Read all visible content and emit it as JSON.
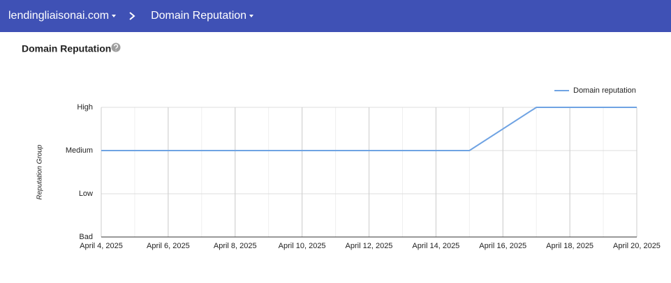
{
  "header": {
    "domain": "lendingliaisonai.com",
    "page": "Domain Reputation"
  },
  "chart_data": {
    "type": "line",
    "title": "Domain Reputation",
    "y_label": "Reputation Group",
    "x": [
      "2025-04-04",
      "2025-04-05",
      "2025-04-06",
      "2025-04-07",
      "2025-04-08",
      "2025-04-09",
      "2025-04-10",
      "2025-04-11",
      "2025-04-12",
      "2025-04-13",
      "2025-04-14",
      "2025-04-15",
      "2025-04-17",
      "2025-04-18",
      "2025-04-19",
      "2025-04-20"
    ],
    "series": [
      {
        "name": "Domain reputation",
        "color": "#6fa3e3",
        "values": [
          2,
          2,
          2,
          2,
          2,
          2,
          2,
          2,
          2,
          2,
          2,
          2,
          3,
          3,
          3,
          3
        ]
      }
    ],
    "xlim": [
      "2025-04-04",
      "2025-04-20"
    ],
    "xticks": [
      {
        "value": "2025-04-04",
        "label": "April 4, 2025"
      },
      {
        "value": "2025-04-06",
        "label": "April 6, 2025"
      },
      {
        "value": "2025-04-08",
        "label": "April 8, 2025"
      },
      {
        "value": "2025-04-10",
        "label": "April 10, 2025"
      },
      {
        "value": "2025-04-12",
        "label": "April 12, 2025"
      },
      {
        "value": "2025-04-14",
        "label": "April 14, 2025"
      },
      {
        "value": "2025-04-16",
        "label": "April 16, 2025"
      },
      {
        "value": "2025-04-18",
        "label": "April 18, 2025"
      },
      {
        "value": "2025-04-20",
        "label": "April 20, 2025"
      }
    ],
    "ylim": [
      0,
      3
    ],
    "yticks": [
      {
        "value": 0,
        "label": "Bad"
      },
      {
        "value": 1,
        "label": "Low"
      },
      {
        "value": 2,
        "label": "Medium"
      },
      {
        "value": 3,
        "label": "High"
      }
    ],
    "grid": true,
    "legend": "top-right"
  }
}
